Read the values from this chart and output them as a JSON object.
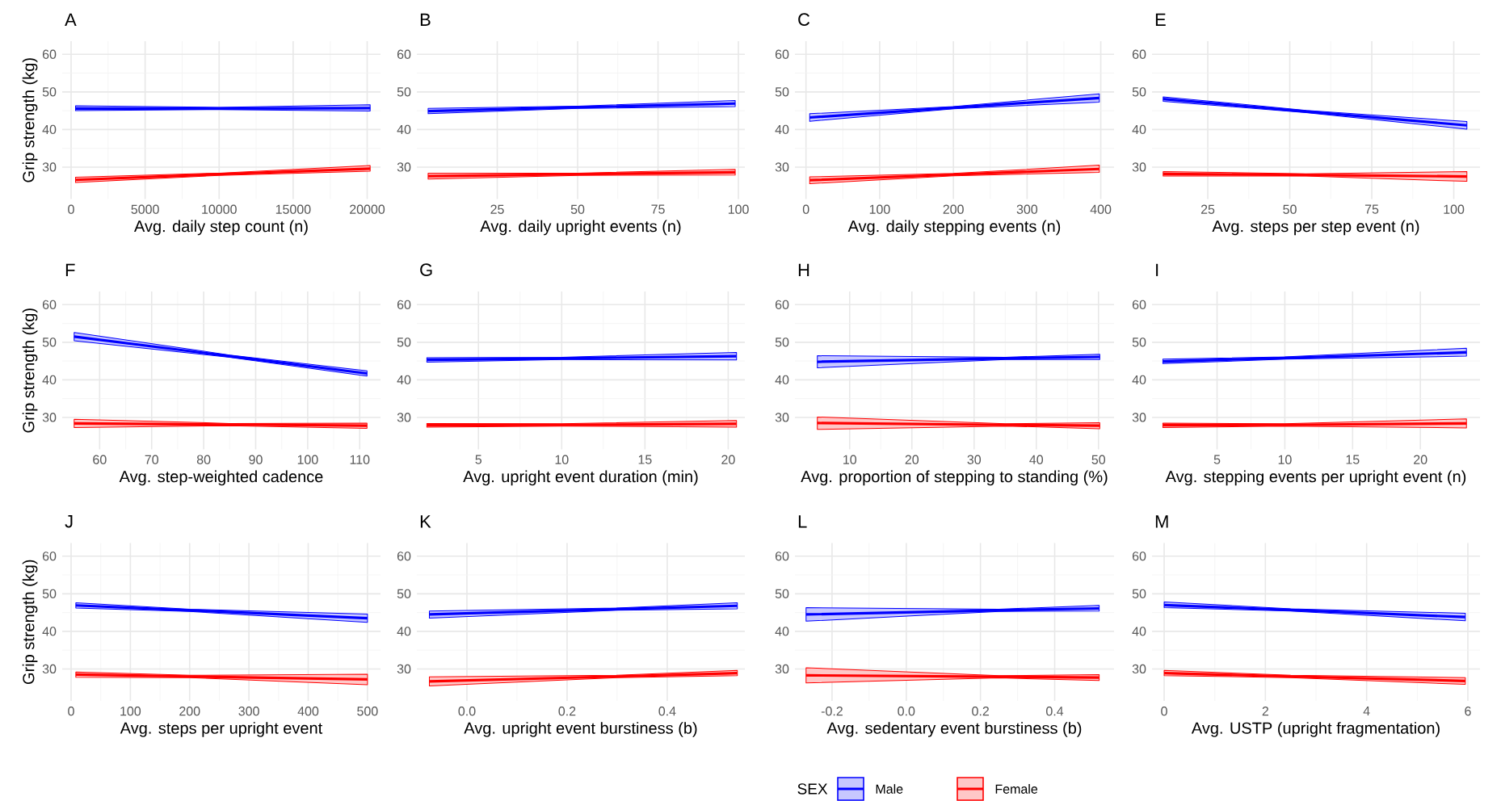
{
  "chart_data": [
    {
      "type": "line",
      "title": "A",
      "xlabel": "Avg. daily step count (n)",
      "ylabel": "Grip strength (kg)",
      "xlim": [
        -600,
        20900
      ],
      "xticks": [
        0,
        5000,
        10000,
        15000,
        20000
      ],
      "ylim": [
        21.5,
        63.5
      ],
      "yticks": [
        30,
        40,
        50,
        60
      ],
      "grid": true,
      "series": [
        {
          "color": "#0000ff",
          "x": [
            300,
            10000,
            20200
          ],
          "values": [
            45.6,
            45.6,
            45.7
          ],
          "lower": [
            45.0,
            45.3,
            44.9
          ],
          "upper": [
            46.3,
            45.9,
            46.6
          ]
        },
        {
          "color": "#ff0000",
          "x": [
            300,
            10000,
            20200
          ],
          "values": [
            26.6,
            28.1,
            29.6
          ],
          "lower": [
            25.9,
            27.8,
            28.9
          ],
          "upper": [
            27.3,
            28.4,
            30.4
          ]
        }
      ]
    },
    {
      "type": "line",
      "title": "B",
      "xlabel": "Avg. daily upright events (n)",
      "xlim": [
        0,
        102
      ],
      "xticks": [
        25,
        50,
        75,
        100
      ],
      "ylim": [
        21.5,
        63.5
      ],
      "yticks": [
        30,
        40,
        50,
        60
      ],
      "grid": true,
      "series": [
        {
          "color": "#0000ff",
          "x": [
            3.5,
            50,
            99
          ],
          "values": [
            44.9,
            45.9,
            46.9
          ],
          "lower": [
            44.2,
            45.6,
            46.1
          ],
          "upper": [
            45.6,
            46.2,
            47.7
          ]
        },
        {
          "color": "#ff0000",
          "x": [
            3.5,
            50,
            99
          ],
          "values": [
            27.6,
            28.1,
            28.6
          ],
          "lower": [
            26.8,
            27.8,
            27.9
          ],
          "upper": [
            28.4,
            28.4,
            29.4
          ]
        }
      ]
    },
    {
      "type": "line",
      "title": "C",
      "xlabel": "Avg. daily stepping events (n)",
      "xlim": [
        -15,
        418
      ],
      "xticks": [
        0,
        100,
        200,
        300,
        400
      ],
      "ylim": [
        21.5,
        63.5
      ],
      "yticks": [
        30,
        40,
        50,
        60
      ],
      "grid": true,
      "series": [
        {
          "color": "#0000ff",
          "x": [
            5,
            200,
            398
          ],
          "values": [
            43.2,
            45.8,
            48.4
          ],
          "lower": [
            42.2,
            45.5,
            47.3
          ],
          "upper": [
            44.2,
            46.1,
            49.5
          ]
        },
        {
          "color": "#ff0000",
          "x": [
            5,
            200,
            398
          ],
          "values": [
            26.5,
            28.0,
            29.5
          ],
          "lower": [
            25.6,
            27.7,
            28.6
          ],
          "upper": [
            27.4,
            28.3,
            30.5
          ]
        }
      ]
    },
    {
      "type": "line",
      "title": "E",
      "xlabel": "Avg. steps per step event (n)",
      "xlim": [
        8,
        108
      ],
      "xticks": [
        25,
        50,
        75,
        100
      ],
      "ylim": [
        21.5,
        63.5
      ],
      "yticks": [
        30,
        40,
        50,
        60
      ],
      "grid": true,
      "series": [
        {
          "color": "#0000ff",
          "x": [
            11.4,
            55,
            104
          ],
          "values": [
            48.1,
            44.8,
            41.1
          ],
          "lower": [
            47.5,
            44.5,
            40.1
          ],
          "upper": [
            48.7,
            45.1,
            42.1
          ]
        },
        {
          "color": "#ff0000",
          "x": [
            11.4,
            55,
            104
          ],
          "values": [
            28.2,
            27.9,
            27.5
          ],
          "lower": [
            27.6,
            27.6,
            26.2
          ],
          "upper": [
            28.8,
            28.2,
            28.8
          ]
        }
      ]
    },
    {
      "type": "line",
      "title": "F",
      "xlabel": "Avg. step-weighted cadence",
      "ylabel": "Grip strength (kg)",
      "xlim": [
        52.8,
        114
      ],
      "xticks": [
        60,
        70,
        80,
        90,
        100,
        110
      ],
      "ylim": [
        21.5,
        63.5
      ],
      "yticks": [
        30,
        40,
        50,
        60
      ],
      "grid": true,
      "series": [
        {
          "color": "#0000ff",
          "x": [
            55.1,
            85,
            111.4
          ],
          "values": [
            51.5,
            46.3,
            41.7
          ],
          "lower": [
            50.4,
            46.0,
            41.0
          ],
          "upper": [
            52.6,
            46.6,
            42.4
          ]
        },
        {
          "color": "#ff0000",
          "x": [
            55.1,
            85,
            111.4
          ],
          "values": [
            28.4,
            28.1,
            27.8
          ],
          "lower": [
            27.3,
            27.8,
            27.1
          ],
          "upper": [
            29.5,
            28.4,
            28.5
          ]
        }
      ]
    },
    {
      "type": "line",
      "title": "G",
      "xlabel": "Avg. upright event duration (min)",
      "xlim": [
        1.3,
        21
      ],
      "xticks": [
        5,
        10,
        15,
        20
      ],
      "ylim": [
        21.5,
        63.5
      ],
      "yticks": [
        30,
        40,
        50,
        60
      ],
      "grid": true,
      "series": [
        {
          "color": "#0000ff",
          "x": [
            1.9,
            10,
            20.5
          ],
          "values": [
            45.3,
            45.7,
            46.3
          ],
          "lower": [
            44.7,
            45.4,
            45.3
          ],
          "upper": [
            45.9,
            46.0,
            47.3
          ]
        },
        {
          "color": "#ff0000",
          "x": [
            1.9,
            10,
            20.5
          ],
          "values": [
            27.9,
            28.0,
            28.3
          ],
          "lower": [
            27.4,
            27.7,
            27.4
          ],
          "upper": [
            28.4,
            28.3,
            29.2
          ]
        }
      ]
    },
    {
      "type": "line",
      "title": "H",
      "xlabel": "Avg. proportion of stepping to standing (%)",
      "xlim": [
        1.2,
        52.5
      ],
      "xticks": [
        10,
        20,
        30,
        40,
        50
      ],
      "ylim": [
        21.5,
        63.5
      ],
      "yticks": [
        30,
        40,
        50,
        60
      ],
      "grid": true,
      "series": [
        {
          "color": "#0000ff",
          "x": [
            4.8,
            35,
            50.2
          ],
          "values": [
            44.8,
            45.7,
            46.1
          ],
          "lower": [
            43.2,
            45.4,
            45.4
          ],
          "upper": [
            46.4,
            46.0,
            46.8
          ]
        },
        {
          "color": "#ff0000",
          "x": [
            4.8,
            35,
            50.2
          ],
          "values": [
            28.5,
            28.0,
            27.8
          ],
          "lower": [
            26.8,
            27.7,
            27.0
          ],
          "upper": [
            30.1,
            28.3,
            28.6
          ]
        }
      ]
    },
    {
      "type": "line",
      "title": "I",
      "xlabel": "Avg. stepping events per upright event (n)",
      "xlim": [
        0.2,
        24.4
      ],
      "xticks": [
        5,
        10,
        15,
        20
      ],
      "ylim": [
        21.5,
        63.5
      ],
      "yticks": [
        30,
        40,
        50,
        60
      ],
      "grid": true,
      "series": [
        {
          "color": "#0000ff",
          "x": [
            1,
            10,
            23.4
          ],
          "values": [
            44.9,
            45.8,
            47.3
          ],
          "lower": [
            44.3,
            45.5,
            46.3
          ],
          "upper": [
            45.5,
            46.1,
            48.4
          ]
        },
        {
          "color": "#ff0000",
          "x": [
            1,
            10,
            23.4
          ],
          "values": [
            27.9,
            28.0,
            28.4
          ],
          "lower": [
            27.3,
            27.7,
            27.2
          ],
          "upper": [
            28.5,
            28.3,
            29.6
          ]
        }
      ]
    },
    {
      "type": "line",
      "title": "J",
      "xlabel": "Avg. steps per upright event",
      "ylabel": "Grip strength (kg)",
      "xlim": [
        -15,
        522
      ],
      "xticks": [
        0,
        100,
        200,
        300,
        400,
        500
      ],
      "ylim": [
        21.5,
        63.5
      ],
      "yticks": [
        30,
        40,
        50,
        60
      ],
      "grid": true,
      "series": [
        {
          "color": "#0000ff",
          "x": [
            8,
            200,
            500
          ],
          "values": [
            46.9,
            45.6,
            43.5
          ],
          "lower": [
            46.2,
            45.3,
            42.4
          ],
          "upper": [
            47.6,
            45.9,
            44.6
          ]
        },
        {
          "color": "#ff0000",
          "x": [
            8,
            200,
            500
          ],
          "values": [
            28.5,
            28.0,
            27.2
          ],
          "lower": [
            27.8,
            27.7,
            25.8
          ],
          "upper": [
            29.2,
            28.3,
            28.6
          ]
        }
      ]
    },
    {
      "type": "line",
      "title": "K",
      "xlabel": "Avg. upright event burstiness (b)",
      "xlim": [
        -0.1,
        0.555
      ],
      "xticks": [
        {
          "value": 0,
          "label": "0.0"
        },
        0.2,
        0.4
      ],
      "ylim": [
        21.5,
        63.5
      ],
      "yticks": [
        30,
        40,
        50,
        60
      ],
      "grid": true,
      "series": [
        {
          "color": "#0000ff",
          "x": [
            -0.075,
            0.3,
            0.54
          ],
          "values": [
            44.5,
            45.9,
            46.8
          ],
          "lower": [
            43.5,
            45.6,
            46.0
          ],
          "upper": [
            45.4,
            46.2,
            47.6
          ]
        },
        {
          "color": "#ff0000",
          "x": [
            -0.075,
            0.3,
            0.54
          ],
          "values": [
            26.7,
            28.0,
            28.9
          ],
          "lower": [
            25.5,
            27.7,
            28.2
          ],
          "upper": [
            27.9,
            28.3,
            29.6
          ]
        }
      ]
    },
    {
      "type": "line",
      "title": "L",
      "xlabel": "Avg. sedentary event burstiness (b)",
      "xlim": [
        -0.3,
        0.56
      ],
      "xticks": [
        -0.2,
        {
          "value": 0,
          "label": "0.0"
        },
        0.2,
        0.4
      ],
      "ylim": [
        21.5,
        63.5
      ],
      "yticks": [
        30,
        40,
        50,
        60
      ],
      "grid": true,
      "series": [
        {
          "color": "#0000ff",
          "x": [
            -0.27,
            0.25,
            0.52
          ],
          "values": [
            44.5,
            45.6,
            46.1
          ],
          "lower": [
            42.7,
            45.3,
            45.4
          ],
          "upper": [
            46.3,
            45.9,
            46.9
          ]
        },
        {
          "color": "#ff0000",
          "x": [
            -0.27,
            0.25,
            0.52
          ],
          "values": [
            28.3,
            27.9,
            27.7
          ],
          "lower": [
            26.3,
            27.6,
            26.9
          ],
          "upper": [
            30.3,
            28.2,
            28.5
          ]
        }
      ]
    },
    {
      "type": "line",
      "title": "M",
      "xlabel": "Avg. USTP (upright fragmentation)",
      "xlim": [
        -0.24,
        6.24
      ],
      "xticks": [
        0,
        2,
        4,
        6
      ],
      "ylim": [
        21.5,
        63.5
      ],
      "yticks": [
        30,
        40,
        50,
        60
      ],
      "grid": true,
      "legend": "bottom",
      "legend_title": "SEX",
      "series": [
        {
          "name": "Male",
          "color": "#0000ff",
          "x": [
            0,
            2.5,
            5.95
          ],
          "values": [
            47.0,
            45.7,
            43.8
          ],
          "lower": [
            46.3,
            45.4,
            42.8
          ],
          "upper": [
            47.8,
            46.0,
            44.8
          ]
        },
        {
          "name": "Female",
          "color": "#ff0000",
          "x": [
            0,
            2.5,
            5.95
          ],
          "values": [
            28.9,
            28.0,
            26.8
          ],
          "lower": [
            28.2,
            27.7,
            25.9
          ],
          "upper": [
            29.6,
            28.3,
            27.7
          ]
        }
      ]
    }
  ]
}
